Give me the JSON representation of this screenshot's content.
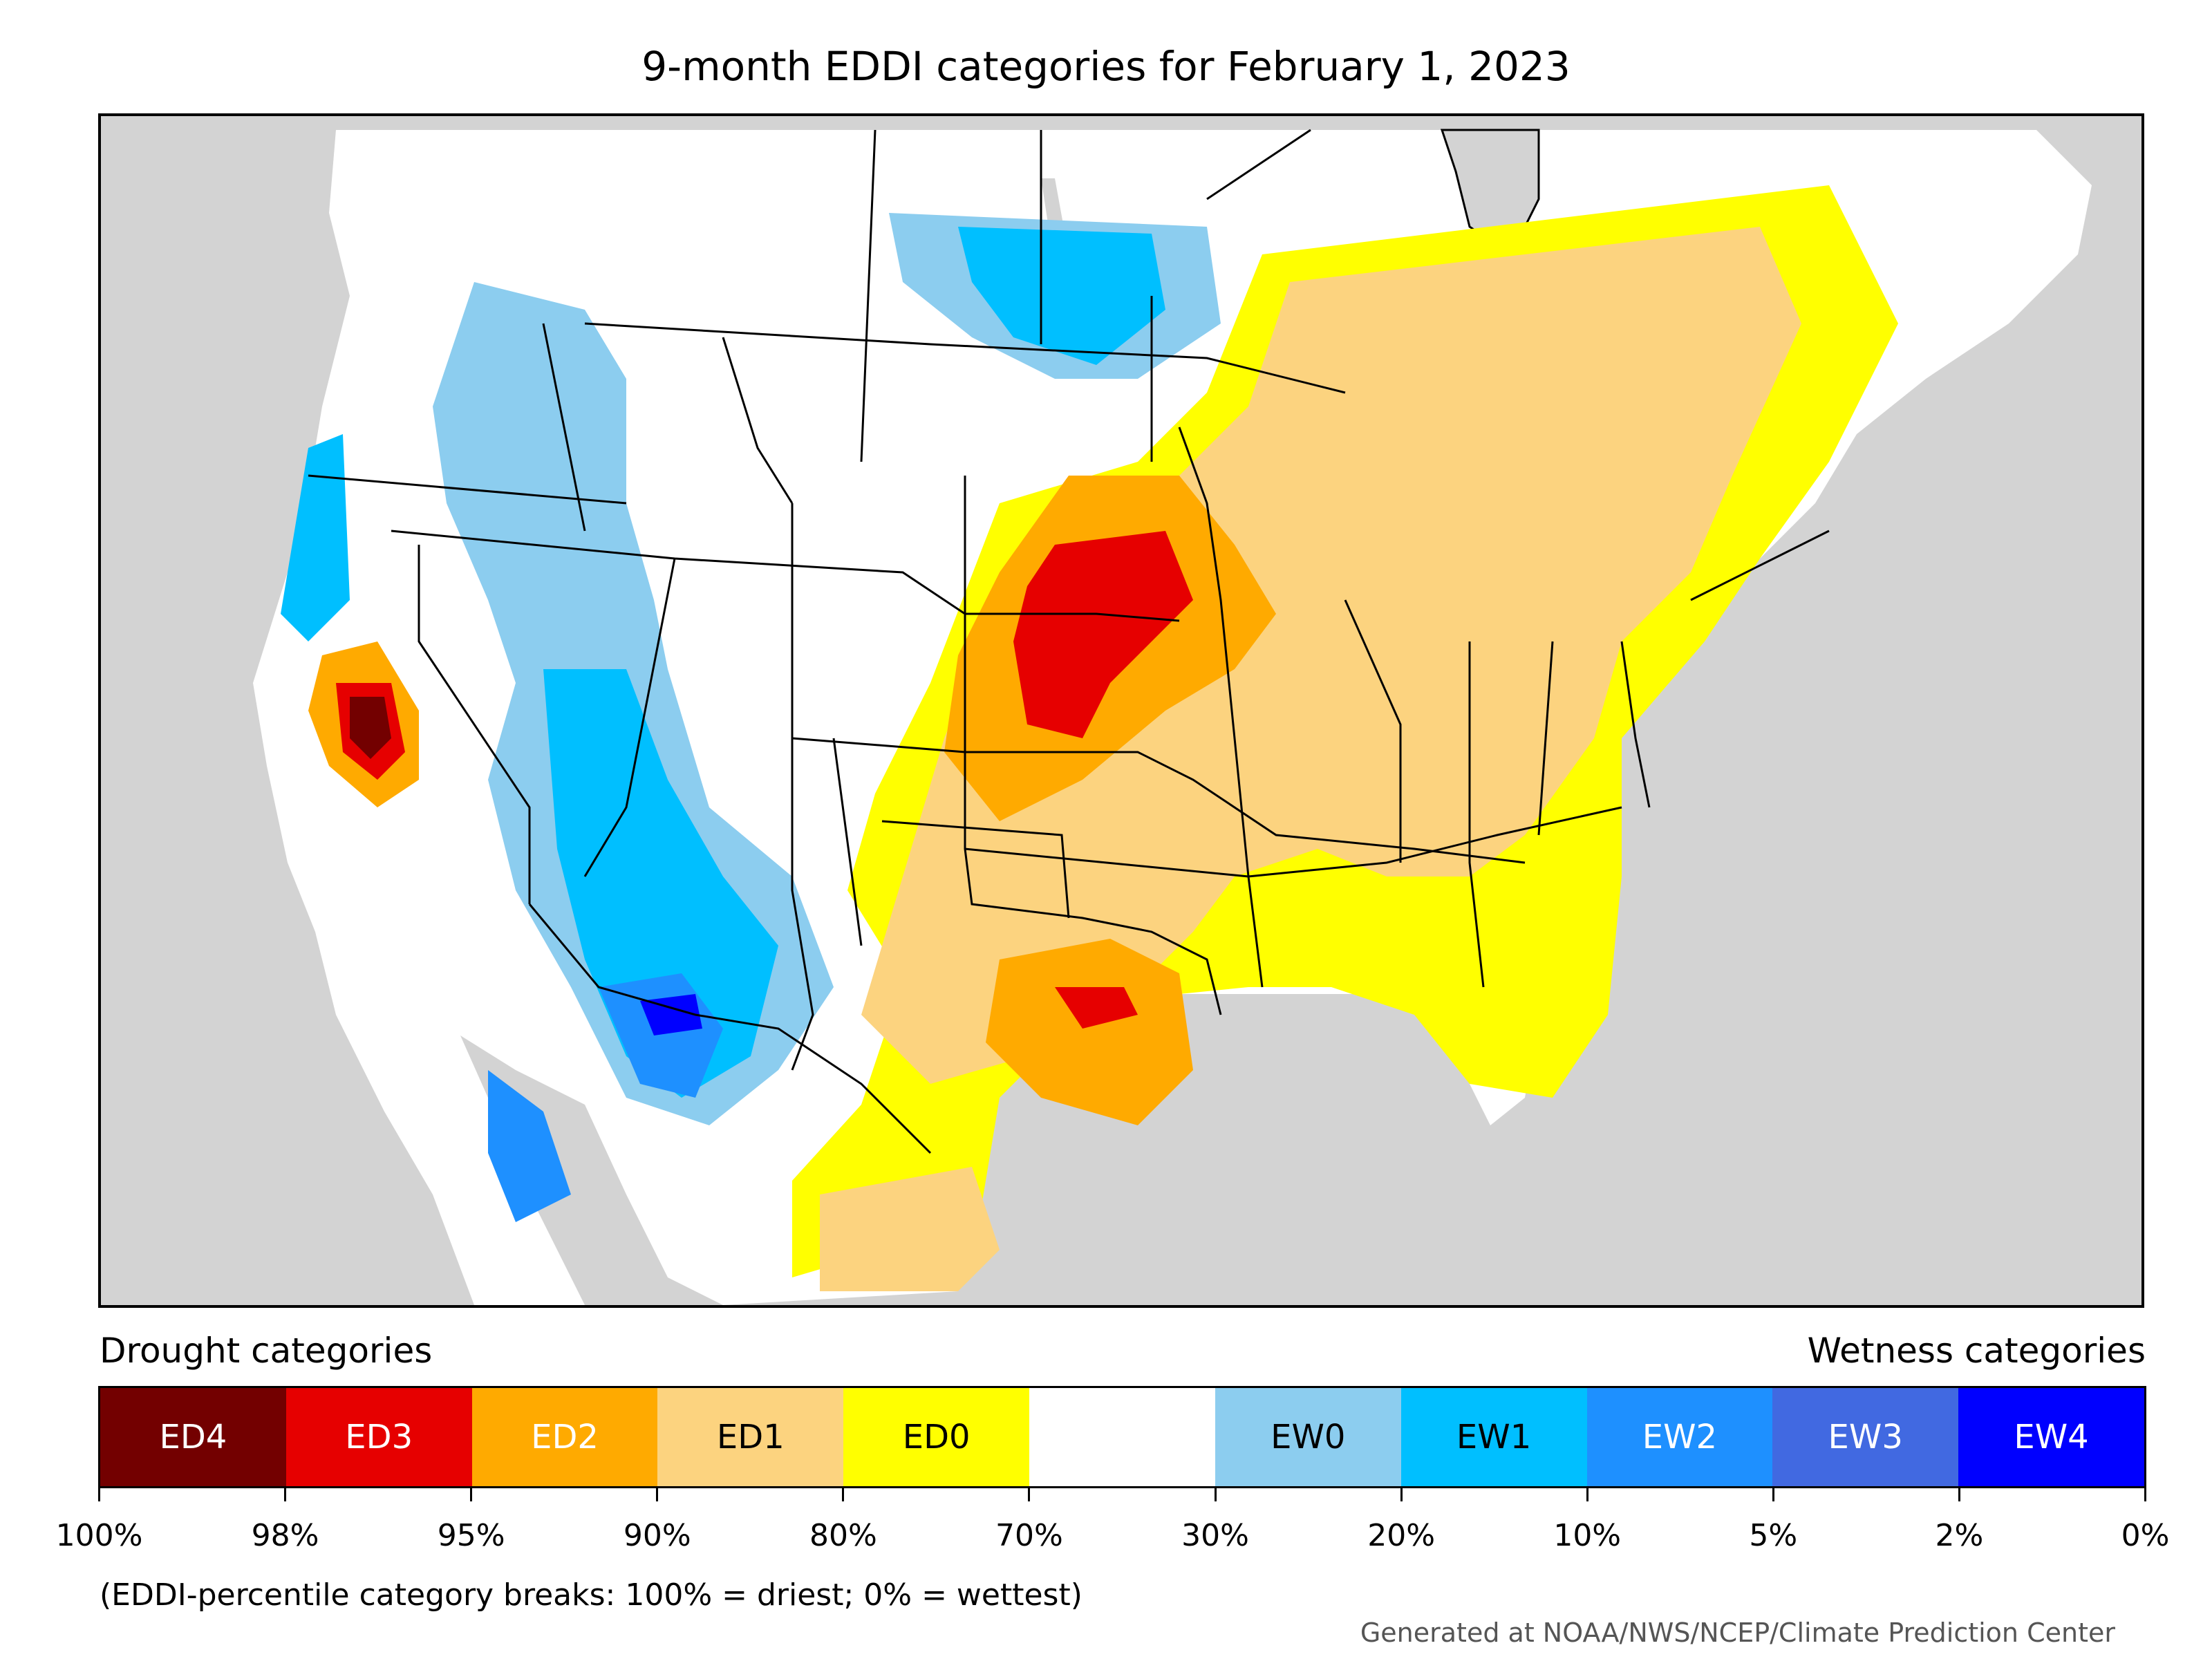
{
  "title": "9-month EDDI categories for February 1, 2023",
  "legend": {
    "left_label": "Drought categories",
    "right_label": "Wetness categories",
    "categories": [
      {
        "label": "ED4",
        "color": "#730000",
        "text_color": "#ffffff"
      },
      {
        "label": "ED3",
        "color": "#e60000",
        "text_color": "#ffffff"
      },
      {
        "label": "ED2",
        "color": "#ffaa00",
        "text_color": "#ffffff"
      },
      {
        "label": "ED1",
        "color": "#fcd37f",
        "text_color": "#000000"
      },
      {
        "label": "ED0",
        "color": "#ffff00",
        "text_color": "#000000"
      },
      {
        "label": "",
        "color": "#ffffff",
        "text_color": "#000000"
      },
      {
        "label": "EW0",
        "color": "#8ccdef",
        "text_color": "#000000"
      },
      {
        "label": "EW1",
        "color": "#00bfff",
        "text_color": "#000000"
      },
      {
        "label": "EW2",
        "color": "#1e90ff",
        "text_color": "#ffffff"
      },
      {
        "label": "EW3",
        "color": "#4169e1",
        "text_color": "#ffffff"
      },
      {
        "label": "EW4",
        "color": "#0000ff",
        "text_color": "#ffffff"
      }
    ],
    "breaks": [
      "100%",
      "98%",
      "95%",
      "90%",
      "80%",
      "70%",
      "30%",
      "20%",
      "10%",
      "5%",
      "2%",
      "0%"
    ]
  },
  "note": "(EDDI-percentile category breaks: 100% = driest; 0% = wettest)",
  "credit": "Generated at NOAA/NWS/NCEP/Climate Prediction Center",
  "map": {
    "background_color": "#d3d3d3",
    "land_color": "#ffffff",
    "water_color": "#d3d3d3"
  }
}
